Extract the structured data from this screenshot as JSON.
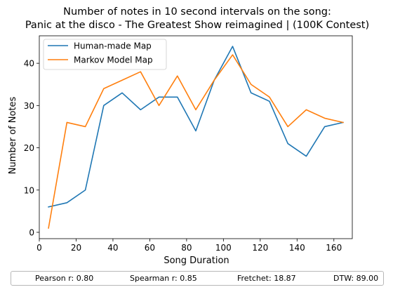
{
  "chart_data": {
    "type": "line",
    "title": "Number of notes in 10 second intervals on the song:",
    "subtitle": "Panic at the disco - The Greatest Show reimagined | (100K Contest)",
    "xlabel": "Song Duration",
    "ylabel": "Number of Notes",
    "xlim": [
      0,
      170
    ],
    "ylim": [
      -1.5,
      46.5
    ],
    "xticks": [
      0,
      20,
      40,
      60,
      80,
      100,
      120,
      140,
      160
    ],
    "yticks": [
      0,
      10,
      20,
      30,
      40
    ],
    "grid": false,
    "legend_position": "top-left",
    "x": [
      5,
      15,
      25,
      35,
      45,
      55,
      65,
      75,
      85,
      95,
      105,
      115,
      125,
      135,
      145,
      155,
      165
    ],
    "series": [
      {
        "name": "Human-made Map",
        "color": "#1f77b4",
        "values": [
          6,
          7,
          10,
          30,
          33,
          29,
          32,
          32,
          24,
          36,
          44,
          33,
          31,
          21,
          18,
          25,
          26
        ]
      },
      {
        "name": "Markov Model Map",
        "color": "#ff7f0e",
        "values": [
          1,
          26,
          25,
          34,
          36,
          38,
          30,
          37,
          29,
          36,
          42,
          35,
          32,
          25,
          29,
          27,
          26
        ]
      }
    ]
  },
  "stats": {
    "pearson": "Pearson r: 0.80",
    "spearman": "Spearman r: 0.85",
    "fretchet": "Fretchet: 18.87",
    "dtw": "DTW: 89.00"
  }
}
